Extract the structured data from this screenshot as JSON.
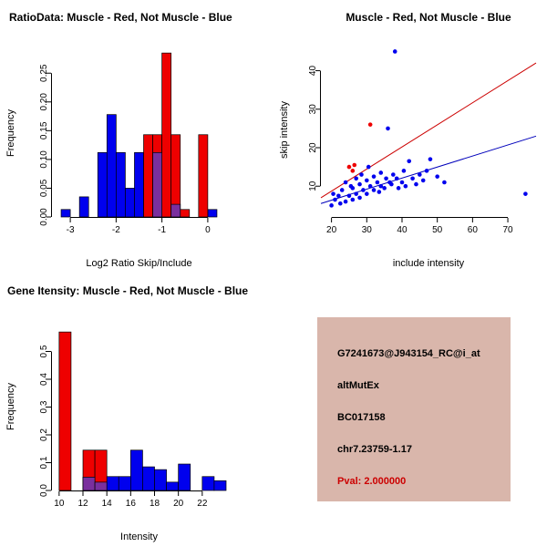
{
  "page": {
    "background": "#ffffff"
  },
  "colors": {
    "muscle_red": "#ee0000",
    "not_muscle_blue": "#0000ee",
    "overlap_purple": "#7a2f9e",
    "scatter_line_red": "#cc0000",
    "scatter_line_blue": "#0000bb",
    "pval_red": "#cc0000",
    "info_bg": "#d9b6ab",
    "axis": "#000000"
  },
  "chart_data": [
    {
      "id": "ratio_hist",
      "type": "bar",
      "title": "RatioData: Muscle - Red, Not Muscle - Blue",
      "xlabel": "Log2 Ratio Skip/Include",
      "ylabel": "Frequency",
      "xlim": [
        -3.4,
        0.4
      ],
      "ylim": [
        0,
        0.29
      ],
      "xticks": [
        -3,
        -2,
        -1,
        0
      ],
      "xtick_labels": [
        "-3",
        "-2",
        "-1",
        "0"
      ],
      "yticks": [
        0,
        0.05,
        0.1,
        0.15,
        0.2,
        0.25
      ],
      "ytick_labels": [
        "0.00",
        "0.05",
        "0.10",
        "0.15",
        "0.20",
        "0.25"
      ],
      "bin_width": 0.2,
      "grid": false,
      "series": [
        {
          "name": "Not Muscle",
          "color": "#0000ee",
          "bins": [
            {
              "x": -3.2,
              "f": 0.013
            },
            {
              "x": -2.8,
              "f": 0.035
            },
            {
              "x": -2.4,
              "f": 0.112
            },
            {
              "x": -2.2,
              "f": 0.178
            },
            {
              "x": -2.0,
              "f": 0.112
            },
            {
              "x": -1.8,
              "f": 0.05
            },
            {
              "x": -1.6,
              "f": 0.112
            },
            {
              "x": -1.4,
              "f": 0.05
            },
            {
              "x": -1.2,
              "f": 0.13
            },
            {
              "x": -1.0,
              "f": 0.096
            },
            {
              "x": -0.8,
              "f": 0.022
            },
            {
              "x": 0.0,
              "f": 0.013
            }
          ]
        },
        {
          "name": "Muscle",
          "color": "#ee0000",
          "bins": [
            {
              "x": -1.4,
              "f": 0.143
            },
            {
              "x": -1.2,
              "f": 0.143
            },
            {
              "x": -1.0,
              "f": 0.285
            },
            {
              "x": -0.8,
              "f": 0.143
            },
            {
              "x": -0.6,
              "f": 0.013
            },
            {
              "x": -0.2,
              "f": 0.143
            }
          ]
        },
        {
          "name": "Overlap",
          "color": "#7a2f9e",
          "bins": [
            {
              "x": -1.2,
              "f": 0.112
            },
            {
              "x": -0.8,
              "f": 0.022
            }
          ]
        }
      ]
    },
    {
      "id": "intensity_scatter",
      "type": "scatter",
      "title": "Muscle - Red, Not Muscle - Blue",
      "xlabel": "include intensity",
      "ylabel": "skip intensity",
      "xlim": [
        17,
        78
      ],
      "ylim": [
        2,
        47
      ],
      "xticks": [
        20,
        30,
        40,
        50,
        60,
        70
      ],
      "xtick_labels": [
        "20",
        "30",
        "40",
        "50",
        "60",
        "70"
      ],
      "yticks": [
        10,
        20,
        30,
        40
      ],
      "ytick_labels": [
        "10",
        "20",
        "30",
        "40"
      ],
      "grid": false,
      "series": [
        {
          "name": "Not Muscle",
          "color": "#0000ee",
          "points": [
            [
              20,
              5
            ],
            [
              20.5,
              8
            ],
            [
              21,
              6.5
            ],
            [
              22,
              7.5
            ],
            [
              22.5,
              5.5
            ],
            [
              23,
              9
            ],
            [
              24,
              6
            ],
            [
              24,
              11
            ],
            [
              25,
              7.5
            ],
            [
              25.5,
              10
            ],
            [
              26,
              6.5
            ],
            [
              26,
              9.5
            ],
            [
              27,
              8
            ],
            [
              27,
              12
            ],
            [
              28,
              7
            ],
            [
              28,
              10.5
            ],
            [
              28.5,
              13
            ],
            [
              29,
              9
            ],
            [
              30,
              8
            ],
            [
              30,
              11.5
            ],
            [
              30.5,
              15
            ],
            [
              31,
              10
            ],
            [
              32,
              9
            ],
            [
              32,
              12.5
            ],
            [
              33,
              11
            ],
            [
              33.5,
              8.5
            ],
            [
              34,
              10
            ],
            [
              34,
              13.5
            ],
            [
              35,
              9.5
            ],
            [
              35.5,
              12
            ],
            [
              36,
              25
            ],
            [
              36.5,
              11
            ],
            [
              37,
              10.5
            ],
            [
              37.5,
              13
            ],
            [
              38,
              45
            ],
            [
              38.5,
              12
            ],
            [
              39,
              9.5
            ],
            [
              40,
              11
            ],
            [
              40.5,
              14
            ],
            [
              41,
              10
            ],
            [
              42,
              16.5
            ],
            [
              43,
              12
            ],
            [
              44,
              10.5
            ],
            [
              45,
              13
            ],
            [
              46,
              11.5
            ],
            [
              47,
              14
            ],
            [
              48,
              17
            ],
            [
              50,
              12.5
            ],
            [
              52,
              11
            ],
            [
              75,
              8
            ]
          ]
        },
        {
          "name": "Muscle",
          "color": "#ee0000",
          "points": [
            [
              25,
              15
            ],
            [
              26,
              14
            ],
            [
              26.5,
              15.5
            ],
            [
              31,
              26
            ]
          ]
        }
      ],
      "lines": [
        {
          "name": "muscle-fit",
          "color": "#cc0000",
          "x1": 17,
          "y1": 7,
          "x2": 78,
          "y2": 42
        },
        {
          "name": "not-muscle-fit",
          "color": "#0000bb",
          "x1": 17,
          "y1": 5.5,
          "x2": 78,
          "y2": 23
        }
      ]
    },
    {
      "id": "gene_hist",
      "type": "bar",
      "title": "Gene Itensity: Muscle - Red, Not Muscle - Blue",
      "xlabel": "Intensity",
      "ylabel": "Frequency",
      "xlim": [
        9.4,
        24
      ],
      "ylim": [
        0,
        0.6
      ],
      "xticks": [
        10,
        12,
        14,
        16,
        18,
        20,
        22
      ],
      "xtick_labels": [
        "10",
        "12",
        "14",
        "16",
        "18",
        "20",
        "22"
      ],
      "yticks": [
        0,
        0.1,
        0.2,
        0.3,
        0.4,
        0.5
      ],
      "ytick_labels": [
        "0.0",
        "0.1",
        "0.2",
        "0.3",
        "0.4",
        "0.5"
      ],
      "bin_width": 1,
      "grid": false,
      "series": [
        {
          "name": "Not Muscle",
          "color": "#0000ee",
          "bins": [
            {
              "x": 12,
              "f": 0.048
            },
            {
              "x": 13,
              "f": 0.03
            },
            {
              "x": 14,
              "f": 0.05
            },
            {
              "x": 15,
              "f": 0.05
            },
            {
              "x": 16,
              "f": 0.145
            },
            {
              "x": 17,
              "f": 0.085
            },
            {
              "x": 18,
              "f": 0.075
            },
            {
              "x": 19,
              "f": 0.03
            },
            {
              "x": 20,
              "f": 0.095
            },
            {
              "x": 22,
              "f": 0.05
            },
            {
              "x": 23,
              "f": 0.035
            }
          ]
        },
        {
          "name": "Muscle",
          "color": "#ee0000",
          "bins": [
            {
              "x": 10,
              "f": 0.57
            },
            {
              "x": 12,
              "f": 0.145
            },
            {
              "x": 13,
              "f": 0.145
            }
          ]
        },
        {
          "name": "Overlap",
          "color": "#7a2f9e",
          "bins": [
            {
              "x": 12,
              "f": 0.048
            },
            {
              "x": 13,
              "f": 0.03
            }
          ]
        }
      ]
    }
  ],
  "info_panel": {
    "lines": [
      "G7241673@J943154_RC@i_at",
      "altMutEx",
      "BC017158",
      "chr7.23759-1.17",
      "Pval: 2.000000"
    ],
    "pval_color": "#cc0000",
    "background": "#d9b6ab"
  }
}
